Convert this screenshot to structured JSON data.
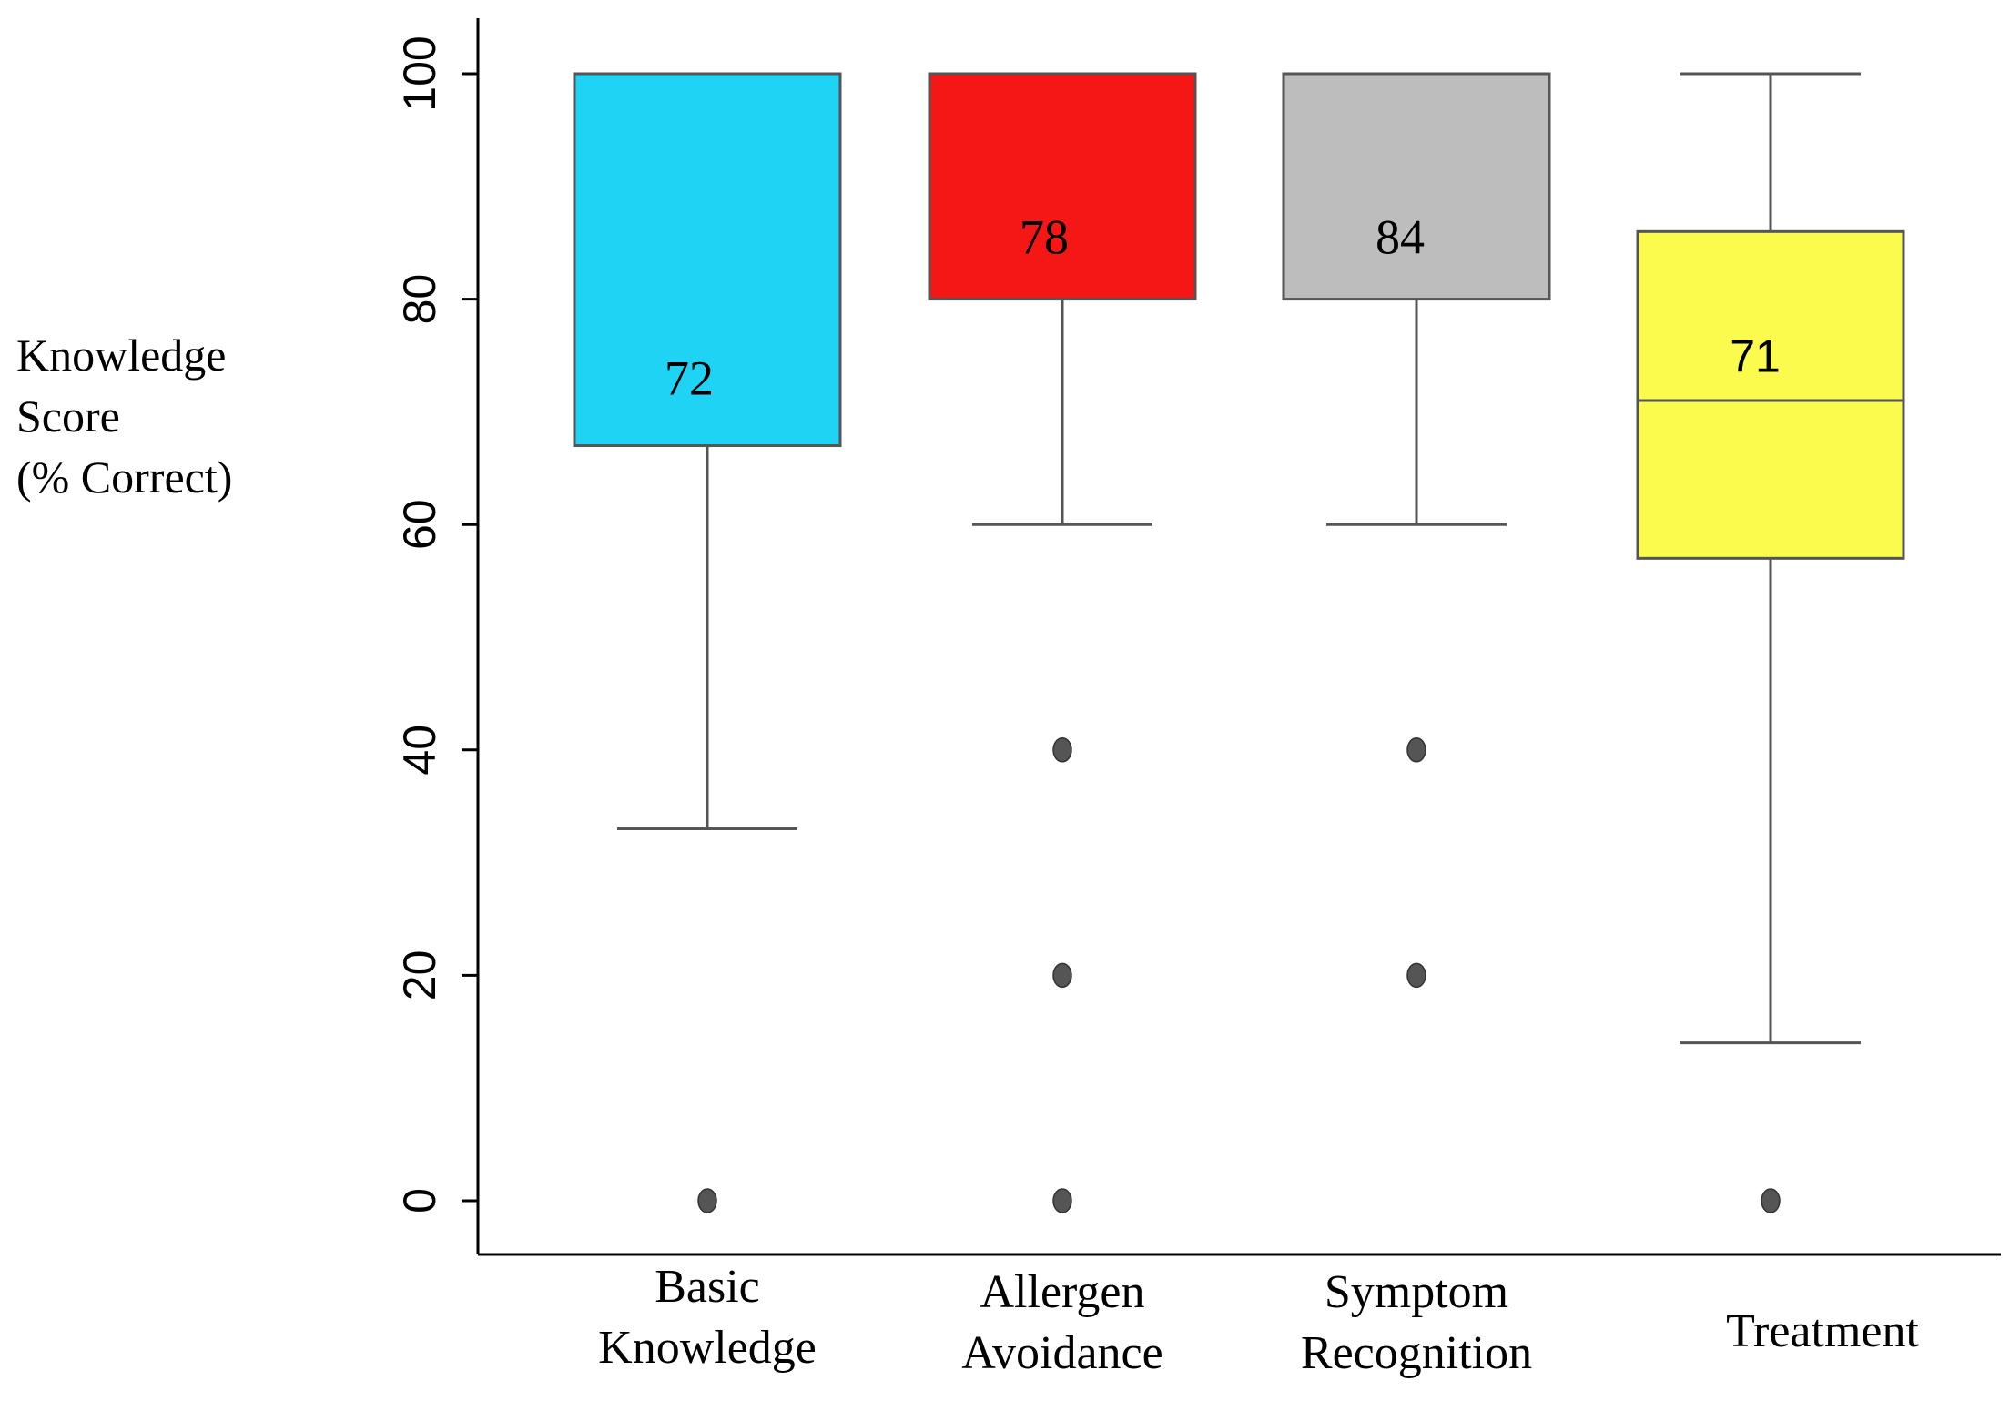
{
  "chart_data": {
    "type": "boxplot",
    "ylabel": [
      "Knowledge",
      "Score",
      "(% Correct)"
    ],
    "ylim": [
      0,
      100
    ],
    "yticks": [
      "0",
      "20",
      "40",
      "60",
      "80",
      "100"
    ],
    "categories": [
      {
        "label": [
          "Basic",
          "Knowledge"
        ],
        "color": "#1fd3f5",
        "whisker_low": 33,
        "q1": 67,
        "median": 100,
        "q3": 100,
        "whisker_high": 100,
        "outliers": [
          0
        ],
        "annotation": "72",
        "annotation_value": 73
      },
      {
        "label": [
          "Allergen",
          "Avoidance"
        ],
        "color": "#f51616",
        "whisker_low": 60,
        "q1": 80,
        "median": 100,
        "q3": 100,
        "whisker_high": 100,
        "outliers": [
          40,
          20,
          0
        ],
        "annotation": "78",
        "annotation_value": 85.5
      },
      {
        "label": [
          "Symptom",
          "Recognition"
        ],
        "color": "#bdbdbd",
        "whisker_low": 60,
        "q1": 80,
        "median": 100,
        "q3": 100,
        "whisker_high": 100,
        "outliers": [
          40,
          20
        ],
        "annotation": "84",
        "annotation_value": 85.5
      },
      {
        "label": [
          "Treatment"
        ],
        "color": "#fbfb4e",
        "whisker_low": 14,
        "q1": 57,
        "median": 71,
        "q3": 86,
        "whisker_high": 100,
        "outliers": [
          0
        ],
        "annotation": "71",
        "annotation_value": 75
      }
    ]
  }
}
